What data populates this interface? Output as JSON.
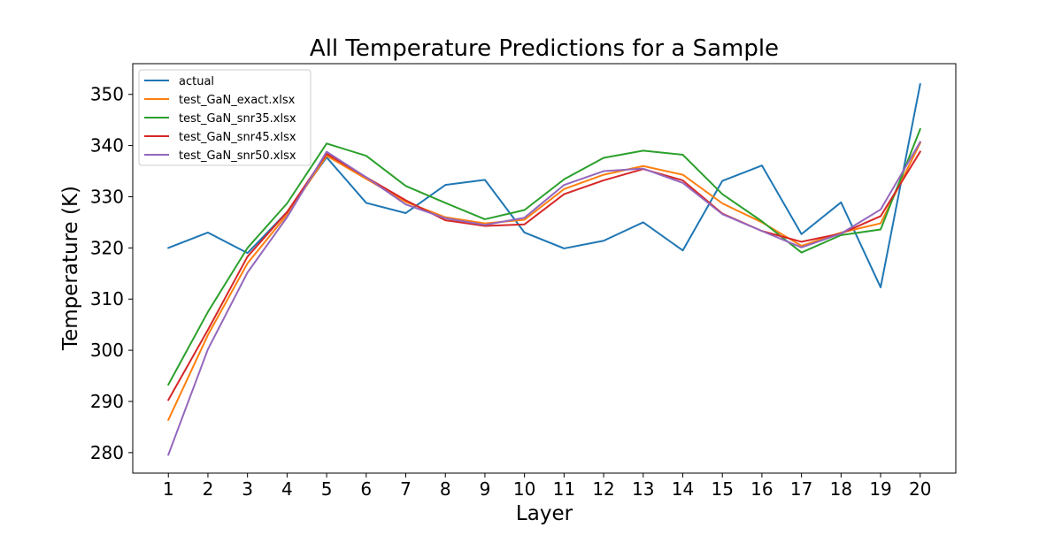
{
  "chart_data": {
    "type": "line",
    "title": "All Temperature Predictions for a Sample",
    "xlabel": "Layer",
    "ylabel": "Temperature (K)",
    "x": [
      1,
      2,
      3,
      4,
      5,
      6,
      7,
      8,
      9,
      10,
      11,
      12,
      13,
      14,
      15,
      16,
      17,
      18,
      19,
      20
    ],
    "xlim": [
      0.1,
      20.9
    ],
    "ylim": [
      276.0,
      356.0
    ],
    "yticks": [
      280,
      290,
      300,
      310,
      320,
      330,
      340,
      350
    ],
    "legend_position": "top-left",
    "grid": false,
    "series": [
      {
        "name": "actual",
        "color": "#1f77b4",
        "values": [
          320.0,
          323.0,
          319.0,
          327.0,
          337.7,
          328.8,
          326.8,
          332.3,
          333.3,
          323.0,
          319.9,
          321.4,
          325.0,
          319.5,
          333.1,
          336.1,
          322.7,
          328.9,
          312.3,
          352.0
        ]
      },
      {
        "name": "test_GaN_exact.xlsx",
        "color": "#ff7f0e",
        "values": [
          286.4,
          303.0,
          317.0,
          326.5,
          338.0,
          333.5,
          329.0,
          326.0,
          324.8,
          325.5,
          331.5,
          334.3,
          336.0,
          334.3,
          328.7,
          325.0,
          320.4,
          323.0,
          324.8,
          340.5
        ]
      },
      {
        "name": "test_GaN_snr35.xlsx",
        "color": "#2ca02c",
        "values": [
          293.3,
          307.5,
          320.0,
          328.7,
          340.4,
          338.0,
          332.1,
          328.8,
          325.6,
          327.4,
          333.4,
          337.6,
          339.0,
          338.2,
          330.5,
          325.2,
          319.1,
          322.5,
          323.6,
          343.2
        ]
      },
      {
        "name": "test_GaN_snr45.xlsx",
        "color": "#d62728",
        "values": [
          290.3,
          304.0,
          318.3,
          327.0,
          338.4,
          333.8,
          329.3,
          325.4,
          324.3,
          324.6,
          330.5,
          333.2,
          335.4,
          333.2,
          326.7,
          323.3,
          321.2,
          322.8,
          326.2,
          338.8
        ]
      },
      {
        "name": "test_GaN_snr50.xlsx",
        "color": "#9467bd",
        "values": [
          279.6,
          300.2,
          315.2,
          326.0,
          338.8,
          333.8,
          328.5,
          325.8,
          324.5,
          325.9,
          332.3,
          335.0,
          335.5,
          332.7,
          326.6,
          323.3,
          320.1,
          322.8,
          327.5,
          340.7
        ]
      }
    ]
  }
}
